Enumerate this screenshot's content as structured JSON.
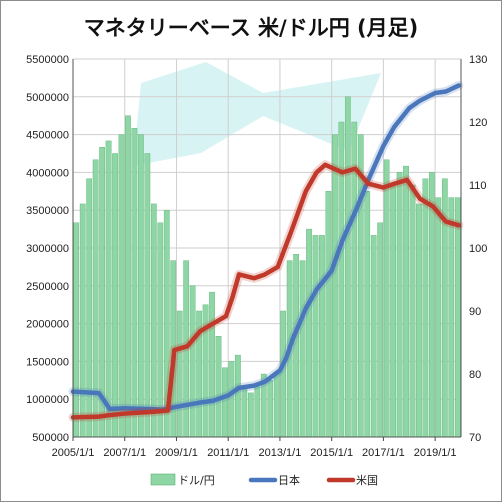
{
  "chart_data": {
    "type": "bar",
    "title": "マネタリーベース 米/ドル円 (月足)",
    "x_tick_labels": [
      "2005/1/1",
      "2007/1/1",
      "2009/1/1",
      "2011/1/1",
      "2013/1/1",
      "2015/1/1",
      "2017/1/1",
      "2019/1/1"
    ],
    "y_left": {
      "ylim": [
        500000,
        5500000
      ],
      "tick_labels": [
        "500000",
        "1000000",
        "1500000",
        "2000000",
        "2500000",
        "3000000",
        "3500000",
        "4000000",
        "4500000",
        "5000000",
        "5500000"
      ]
    },
    "y_right": {
      "ylim": [
        70,
        130
      ],
      "tick_labels": [
        "70",
        "80",
        "90",
        "100",
        "110",
        "120",
        "130"
      ]
    },
    "grid": true,
    "legend_position": "bottom",
    "series": [
      {
        "name": "ドル/円",
        "type": "bar",
        "axis": "right",
        "color": "#8fd6a5",
        "x": [
          "2005-01",
          "2005-04",
          "2005-07",
          "2005-10",
          "2006-01",
          "2006-04",
          "2006-07",
          "2006-10",
          "2007-01",
          "2007-04",
          "2007-07",
          "2007-10",
          "2008-01",
          "2008-04",
          "2008-07",
          "2008-10",
          "2009-01",
          "2009-04",
          "2009-07",
          "2009-10",
          "2010-01",
          "2010-04",
          "2010-07",
          "2010-10",
          "2011-01",
          "2011-04",
          "2011-07",
          "2011-10",
          "2012-01",
          "2012-04",
          "2012-07",
          "2012-10",
          "2013-01",
          "2013-04",
          "2013-07",
          "2013-10",
          "2014-01",
          "2014-04",
          "2014-07",
          "2014-10",
          "2015-01",
          "2015-04",
          "2015-07",
          "2015-10",
          "2016-01",
          "2016-04",
          "2016-07",
          "2016-10",
          "2017-01",
          "2017-04",
          "2017-07",
          "2017-10",
          "2018-01",
          "2018-04",
          "2018-07",
          "2018-10",
          "2019-01",
          "2019-04",
          "2019-07",
          "2019-10"
        ],
        "values": [
          104,
          107,
          111,
          114,
          116,
          117,
          115,
          118,
          121,
          119,
          118,
          115,
          107,
          104,
          106,
          98,
          90,
          98,
          94,
          90,
          91,
          93,
          86,
          81,
          82,
          83,
          78,
          77,
          78,
          80,
          79,
          80,
          90,
          98,
          99,
          98,
          103,
          102,
          102,
          109,
          118,
          120,
          124,
          120,
          118,
          109,
          102,
          104,
          114,
          110,
          112,
          113,
          110,
          107,
          111,
          112,
          108,
          111,
          108,
          108
        ]
      },
      {
        "name": "日本",
        "type": "line",
        "axis": "left",
        "color": "#4a77bb",
        "x": [
          "2005-01",
          "2006-01",
          "2006-03",
          "2006-06",
          "2007-01",
          "2008-01",
          "2008-06",
          "2009-01",
          "2010-01",
          "2010-06",
          "2011-01",
          "2011-06",
          "2012-01",
          "2012-06",
          "2013-01",
          "2013-04",
          "2013-07",
          "2014-01",
          "2014-06",
          "2015-01",
          "2015-06",
          "2016-01",
          "2016-06",
          "2017-01",
          "2017-06",
          "2018-01",
          "2018-06",
          "2019-01",
          "2019-06",
          "2019-12"
        ],
        "values": [
          1100000,
          1080000,
          1000000,
          870000,
          880000,
          870000,
          860000,
          900000,
          960000,
          980000,
          1050000,
          1150000,
          1180000,
          1230000,
          1380000,
          1550000,
          1800000,
          2200000,
          2450000,
          2700000,
          3100000,
          3550000,
          3900000,
          4350000,
          4600000,
          4850000,
          4950000,
          5050000,
          5070000,
          5150000
        ]
      },
      {
        "name": "米国",
        "type": "line",
        "axis": "left",
        "color": "#c0392b",
        "x": [
          "2005-01",
          "2006-01",
          "2006-06",
          "2007-01",
          "2008-01",
          "2008-09",
          "2008-10",
          "2008-12",
          "2009-06",
          "2009-12",
          "2010-06",
          "2010-12",
          "2011-03",
          "2011-06",
          "2012-01",
          "2012-06",
          "2012-12",
          "2013-06",
          "2014-01",
          "2014-06",
          "2014-10",
          "2015-06",
          "2015-12",
          "2016-06",
          "2017-01",
          "2017-06",
          "2017-12",
          "2018-06",
          "2018-12",
          "2019-06",
          "2019-12"
        ],
        "values": [
          760000,
          770000,
          790000,
          810000,
          830000,
          850000,
          1100000,
          1650000,
          1700000,
          1900000,
          2000000,
          2100000,
          2350000,
          2650000,
          2600000,
          2650000,
          2750000,
          3200000,
          3750000,
          4000000,
          4100000,
          4000000,
          4050000,
          3850000,
          3800000,
          3850000,
          3900000,
          3650000,
          3550000,
          3350000,
          3300000
        ]
      }
    ]
  }
}
